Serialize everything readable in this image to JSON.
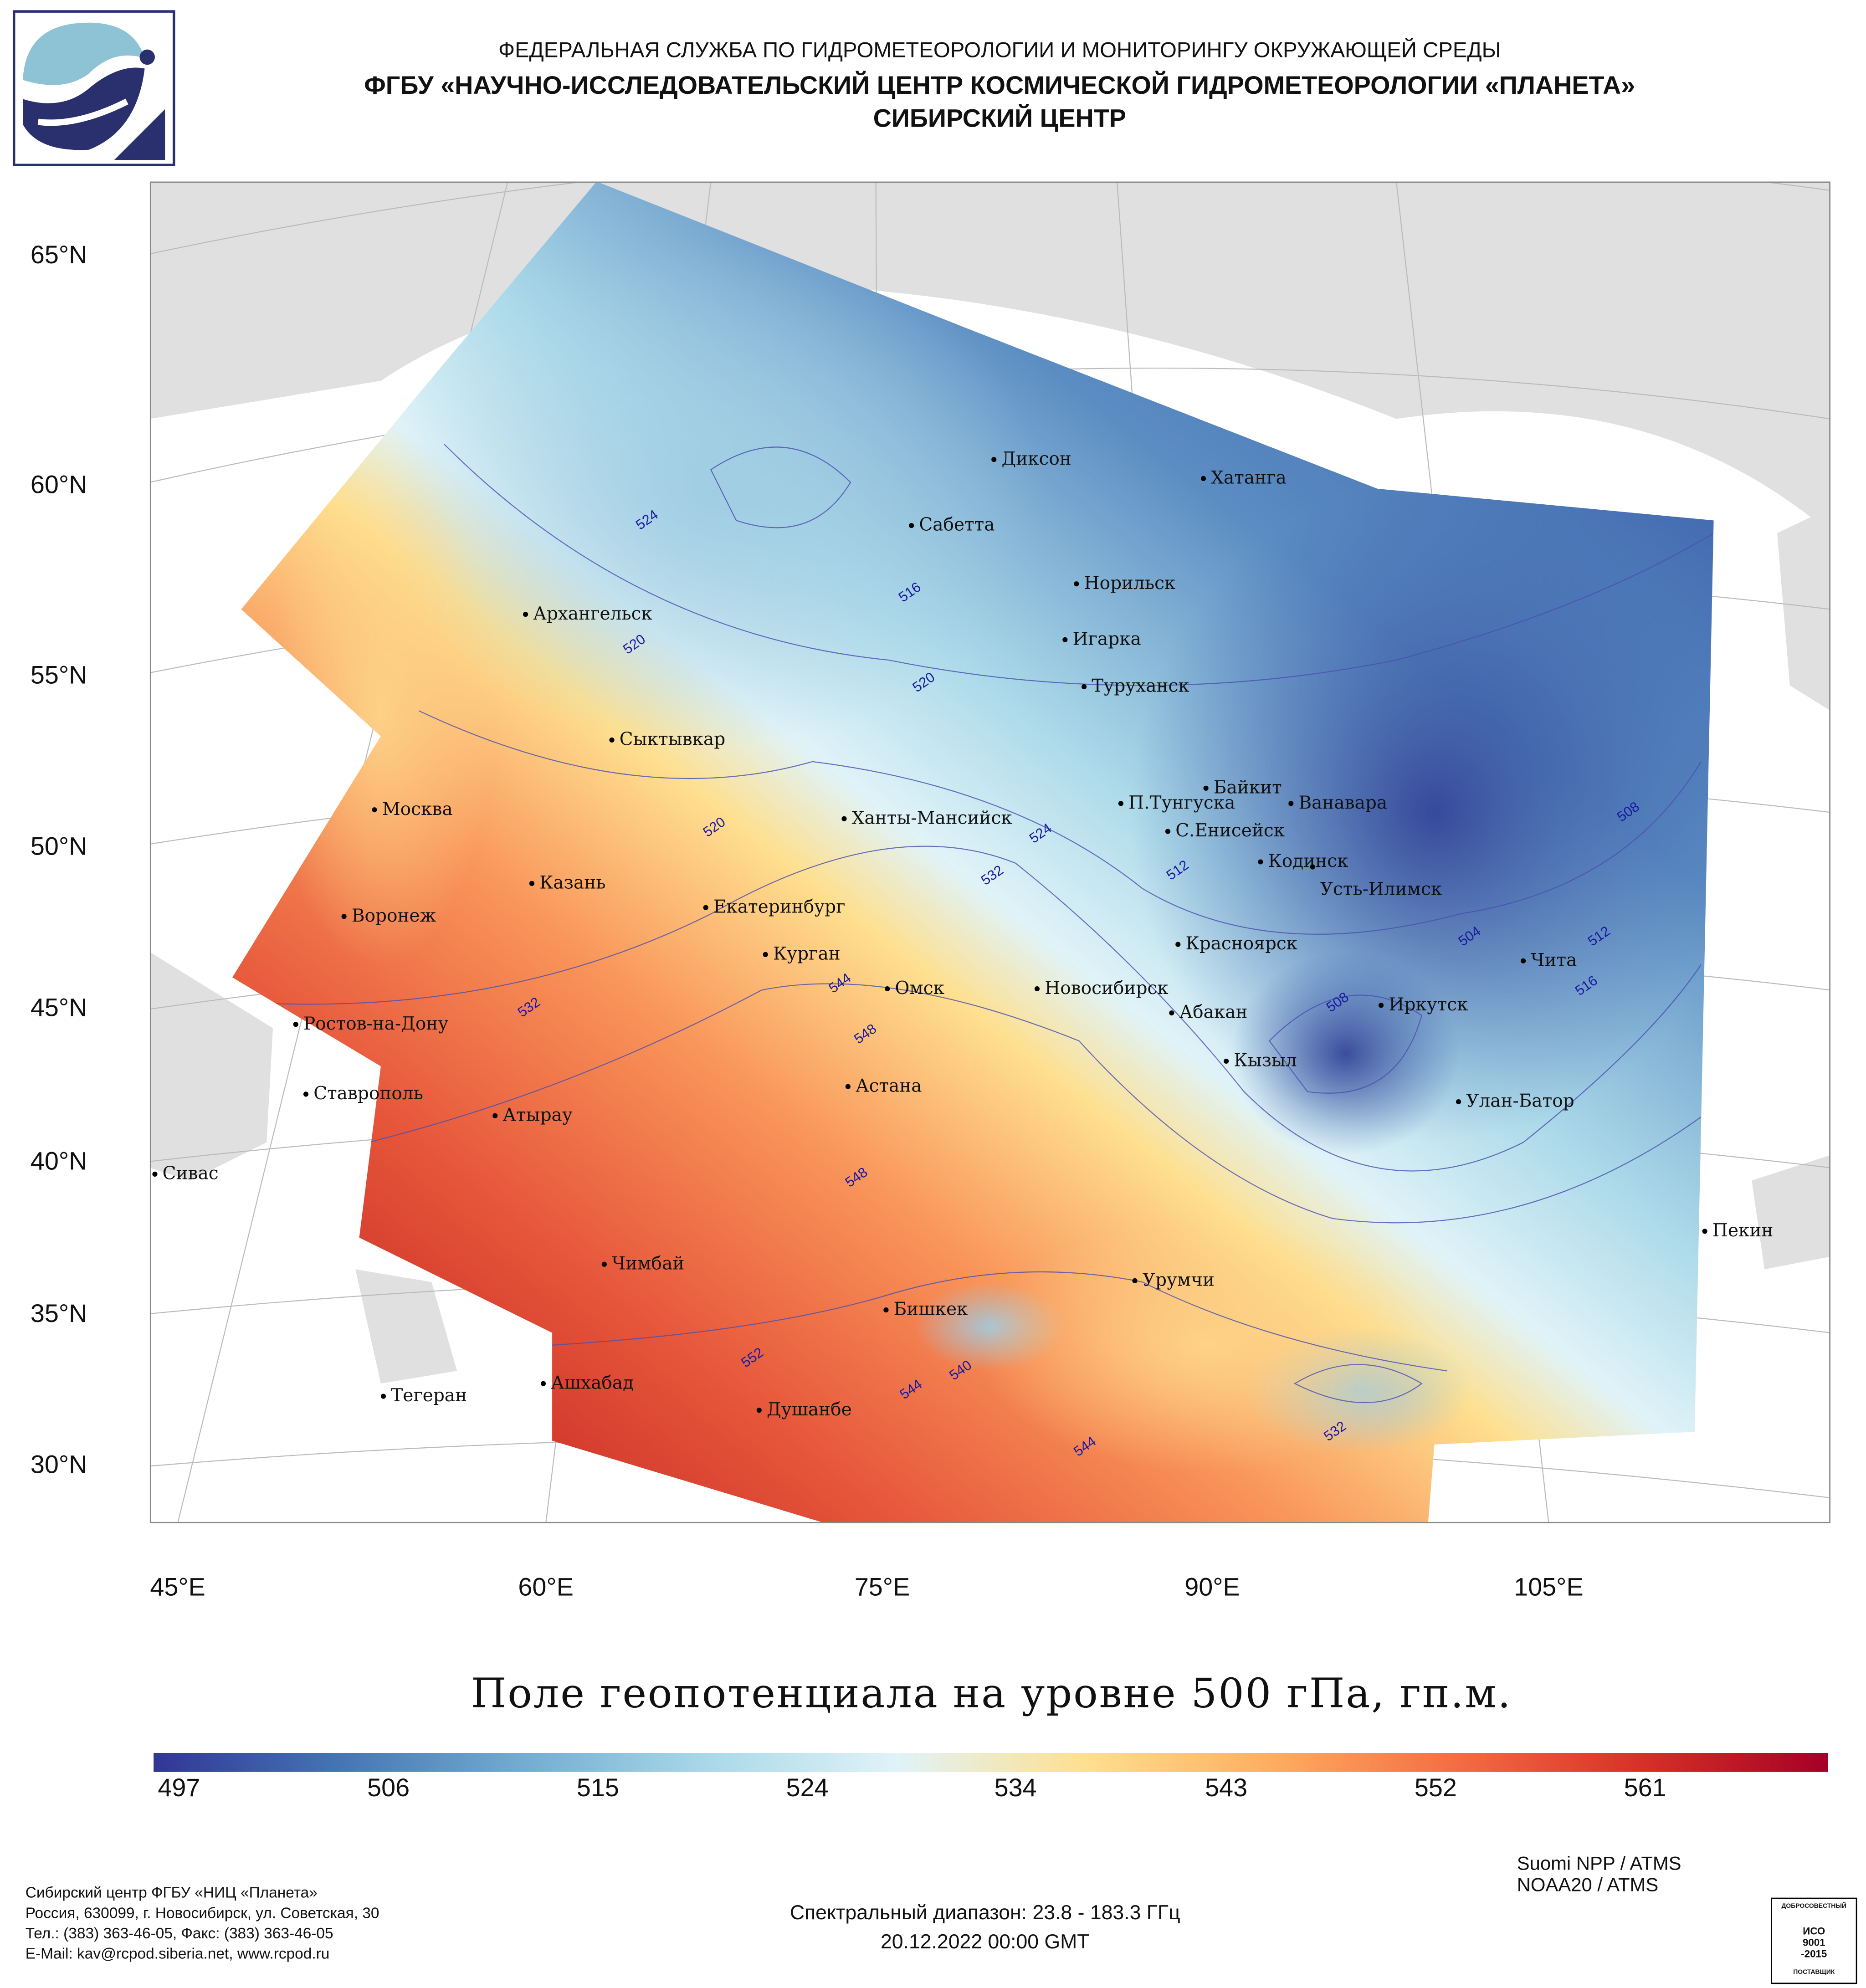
{
  "header": {
    "line1": "ФЕДЕРАЛЬНАЯ СЛУЖБА ПО ГИДРОМЕТЕОРОЛОГИИ И МОНИТОРИНГУ ОКРУЖАЮЩЕЙ СРЕДЫ",
    "line2": "ФГБУ «НАУЧНО-ИССЛЕДОВАТЕЛЬСКИЙ ЦЕНТР КОСМИЧЕСКОЙ ГИДРОМЕТЕОРОЛОГИИ «ПЛАНЕТА»",
    "line3": "СИБИРСКИЙ ЦЕНТР"
  },
  "map": {
    "lat_labels": [
      "65°N",
      "60°N",
      "55°N",
      "50°N",
      "45°N",
      "40°N",
      "35°N",
      "30°N"
    ],
    "lon_labels": [
      "45°E",
      "60°E",
      "75°E",
      "90°E",
      "105°E"
    ],
    "cities": [
      "Диксон",
      "Хатанга",
      "Сабетта",
      "Норильск",
      "Архангельск",
      "Игарка",
      "Туруханск",
      "Сыктывкар",
      "Байкит",
      "П.Тунгуска",
      "Ванавара",
      "Москва",
      "Ханты-Мансийск",
      "С.Енисейск",
      "Кодинск",
      "Усть-Илимск",
      "Казань",
      "Екатеринбург",
      "Воронеж",
      "Красноярск",
      "Курган",
      "Чита",
      "Омск",
      "Новосибирск",
      "Иркутск",
      "Абакан",
      "Ростов-на-Дону",
      "Кызыл",
      "Астана",
      "Ставрополь",
      "Улан-Батор",
      "Атырау",
      "Сивас",
      "Пекин",
      "Чимбай",
      "Урумчи",
      "Бишкек",
      "Ашхабад",
      "Тегеран",
      "Душанбе"
    ],
    "contour_labels": [
      "524",
      "520",
      "516",
      "520",
      "520",
      "524",
      "532",
      "512",
      "504",
      "512",
      "516",
      "508",
      "532",
      "544",
      "548",
      "508",
      "548",
      "552",
      "544",
      "540",
      "544",
      "532"
    ]
  },
  "title": "Поле геопотенциала на уровне 500 гПа, гп.м.",
  "colorbar": {
    "labels": [
      "497",
      "506",
      "515",
      "524",
      "534",
      "543",
      "552",
      "561"
    ],
    "colors": [
      "#313695",
      "#4575b4",
      "#74add1",
      "#abd9e9",
      "#e0f3f8",
      "#fee090",
      "#fdae61",
      "#f46d43",
      "#d73027",
      "#a50026"
    ]
  },
  "footer": {
    "org": [
      "Сибирский центр ФГБУ «НИЦ «Планета»",
      "Россия, 630099, г. Новосибирск, ул. Советская, 30",
      "Тел.: (383) 363-46-05, Факс: (383) 363-46-05",
      "E-Mail: kav@rcpod.siberia.net, www.rcpod.ru"
    ],
    "spectral": "Спектральный диапазон: 23.8 - 183.3 ГГц",
    "datetime": "20.12.2022 00:00 GMT",
    "satellites": [
      "Suomi NPP / ATMS",
      "NOAA20 / ATMS"
    ],
    "iso": {
      "top": "ДОБРОСОВЕСТНЫЙ",
      "l1": "ИСО",
      "l2": "9001",
      "l3": "-2015",
      "bottom": "ПОСТАВЩИК"
    }
  }
}
